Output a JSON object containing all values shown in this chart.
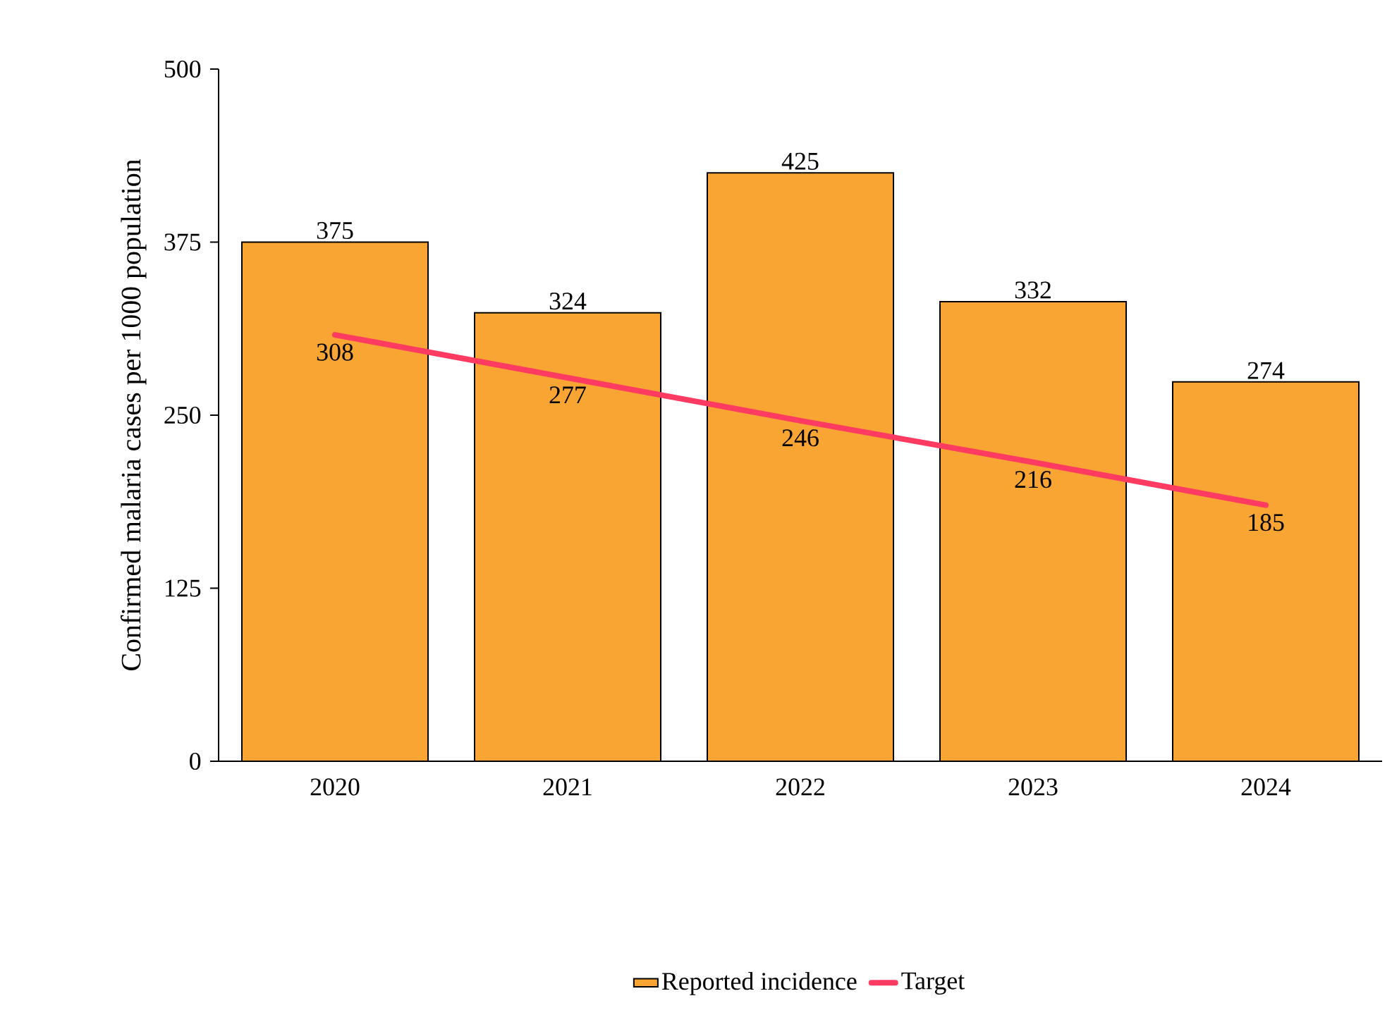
{
  "chart_data": {
    "type": "bar",
    "ylabel": "Confirmed malaria cases per 1000 population",
    "categories": [
      "2020",
      "2021",
      "2022",
      "2023",
      "2024"
    ],
    "ylim": [
      0,
      500
    ],
    "yticks": [
      0,
      125,
      250,
      375,
      500
    ],
    "data_labels": true,
    "legend": "bottom",
    "series": [
      {
        "name": "Reported incidence",
        "color": "#f9a533",
        "values": [
          375,
          324,
          425,
          332,
          274
        ]
      },
      {
        "name": "Target",
        "type": "line",
        "color": "#ff3b61",
        "values": [
          308,
          277,
          246,
          216,
          185
        ]
      }
    ]
  }
}
